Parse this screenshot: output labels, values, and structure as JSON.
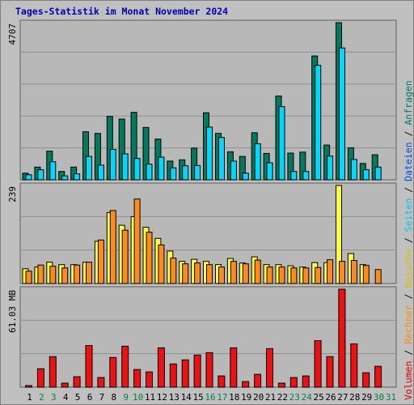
{
  "title": "Tages-Statistik im Monat November 2024",
  "colors": {
    "background": "#c0c0c0",
    "panel": "#b8b8b8",
    "grid": "#8f8f8f",
    "anfragen": "#007b5e",
    "dateien": "#00d8ff",
    "seiten": "#00d8ff",
    "besuche": "#ffff40",
    "rechner": "#ff8c1a",
    "volumen": "#ee1111",
    "title": "#0000b0"
  },
  "right_legend": {
    "separator": " / ",
    "items": [
      {
        "label": "Volumen",
        "color": "#dd0000"
      },
      {
        "label": "Rechner",
        "color": "#ff8c00"
      },
      {
        "label": "Besuche",
        "color": "#d8c000"
      },
      {
        "label": "Seiten",
        "color": "#00c8e8"
      },
      {
        "label": "Dateien",
        "color": "#0050e0"
      },
      {
        "label": "Anfragen",
        "color": "#007b5e"
      }
    ]
  },
  "chart_data": {
    "type": "bar",
    "title": "Tages-Statistik im Monat November 2024",
    "categories": [
      "1",
      "2",
      "3",
      "4",
      "5",
      "6",
      "7",
      "8",
      "9",
      "10",
      "11",
      "12",
      "13",
      "14",
      "15",
      "16",
      "17",
      "18",
      "19",
      "20",
      "21",
      "22",
      "23",
      "24",
      "25",
      "26",
      "27",
      "28",
      "29",
      "30",
      "31"
    ],
    "weekend_days": [
      "2",
      "3",
      "9",
      "10",
      "16",
      "17",
      "23",
      "24",
      "30",
      "31"
    ],
    "day_label_colors": {
      "weekday": "#000000",
      "weekend": "#00804a"
    },
    "panels": [
      {
        "name": "Anfragen / Dateien",
        "ymax_label": "4707",
        "ylim": [
          0,
          4707
        ],
        "series": [
          {
            "name": "Anfragen",
            "values": [
              200,
              380,
              860,
              250,
              380,
              1440,
              1390,
              1900,
              1820,
              2020,
              1570,
              1220,
              560,
              600,
              950,
              2010,
              1390,
              840,
              700,
              1410,
              790,
              2510,
              800,
              830,
              3710,
              1040,
              4707,
              960,
              490,
              750,
              0
            ]
          },
          {
            "name": "Dateien",
            "values": [
              150,
              300,
              540,
              120,
              180,
              700,
              440,
              910,
              780,
              640,
              470,
              680,
              360,
              420,
              430,
              1580,
              1270,
              560,
              200,
              1080,
              510,
              2190,
              250,
              250,
              3430,
              710,
              3950,
              610,
              300,
              380,
              0
            ]
          },
          {
            "name": "Seiten",
            "values": [
              0,
              0,
              0,
              0,
              0,
              0,
              0,
              0,
              0,
              0,
              0,
              0,
              0,
              0,
              0,
              0,
              0,
              0,
              0,
              0,
              0,
              0,
              0,
              0,
              0,
              0,
              0,
              0,
              0,
              0,
              0
            ]
          }
        ]
      },
      {
        "name": "Besuche / Rechner",
        "ymax_label": "239",
        "ylim": [
          0,
          239
        ],
        "series": [
          {
            "name": "Besuche",
            "values": [
              36,
              40,
              52,
              46,
              46,
              52,
              103,
              173,
              142,
              163,
              137,
              110,
              79,
              54,
              59,
              54,
              46,
              61,
              50,
              65,
              46,
              46,
              43,
              40,
              51,
              51,
              239,
              73,
              46,
              0,
              0
            ]
          },
          {
            "name": "Rechner",
            "values": [
              30,
              45,
              42,
              38,
              45,
              52,
              106,
              178,
              130,
              206,
              125,
              94,
              62,
              48,
              50,
              46,
              40,
              54,
              48,
              57,
              40,
              40,
              38,
              38,
              39,
              58,
              54,
              56,
              44,
              34,
              0
            ]
          }
        ]
      },
      {
        "name": "Volumen",
        "ymax_label": "61.03 MB",
        "ylim": [
          0,
          61.03
        ],
        "series": [
          {
            "name": "Volumen",
            "values": [
              1,
              11.5,
              19,
              2.5,
              6.5,
              26,
              6,
              18.5,
              25.5,
              11,
              9.5,
              24.5,
              14.5,
              17,
              20,
              21.5,
              7,
              24.5,
              3.5,
              8,
              24,
              2.5,
              6,
              7,
              29,
              19,
              61.03,
              27,
              9,
              13,
              0
            ]
          }
        ]
      }
    ]
  }
}
